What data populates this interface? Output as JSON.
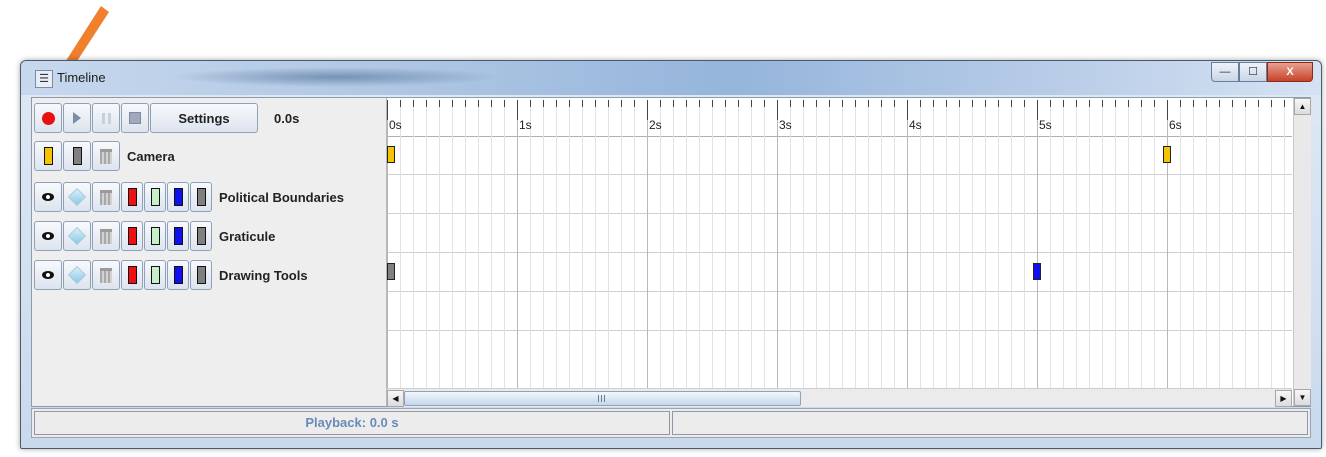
{
  "window": {
    "title": "Timeline",
    "controls": {
      "minimize": "—",
      "maximize": "☐",
      "close": "X"
    }
  },
  "toolbar": {
    "record_icon": "record-icon",
    "play_icon": "play-icon",
    "pause_icon": "pause-icon",
    "stop_icon": "stop-icon",
    "settings_label": "Settings",
    "time": "0.0s"
  },
  "layers": [
    {
      "name": "Camera",
      "type": "camera",
      "swatches": [
        "#f5c400",
        "#808080"
      ],
      "icons": [
        "trash-icon"
      ]
    },
    {
      "name": "Political Boundaries",
      "type": "layer",
      "swatches": [
        "#ee1111",
        "#c8f0c8",
        "#1010ee",
        "#808080"
      ],
      "icons": [
        "eye-icon",
        "cube-icon",
        "trash-icon"
      ]
    },
    {
      "name": "Graticule",
      "type": "layer",
      "swatches": [
        "#ee1111",
        "#c8f0c8",
        "#1010ee",
        "#808080"
      ],
      "icons": [
        "eye-icon",
        "cube-icon",
        "trash-icon"
      ]
    },
    {
      "name": "Drawing Tools",
      "type": "layer",
      "swatches": [
        "#ee1111",
        "#c8f0c8",
        "#1010ee",
        "#808080"
      ],
      "icons": [
        "eye-icon",
        "cube-icon",
        "trash-icon"
      ]
    }
  ],
  "timeline": {
    "seconds": [
      "0s",
      "1s",
      "2s",
      "3s",
      "4s",
      "5s",
      "6s"
    ],
    "keyframes": [
      {
        "track": 0,
        "time": 0,
        "color": "#f5c400"
      },
      {
        "track": 0,
        "time": 6,
        "color": "#f5c400"
      },
      {
        "track": 3,
        "time": 0,
        "color": "#808080"
      },
      {
        "track": 3,
        "time": 5,
        "color": "#1010ee"
      }
    ]
  },
  "statusbar": {
    "playback": "Playback: 0.0 s",
    "right": ""
  },
  "annotation": {
    "arrow_color": "#f07f2e"
  }
}
